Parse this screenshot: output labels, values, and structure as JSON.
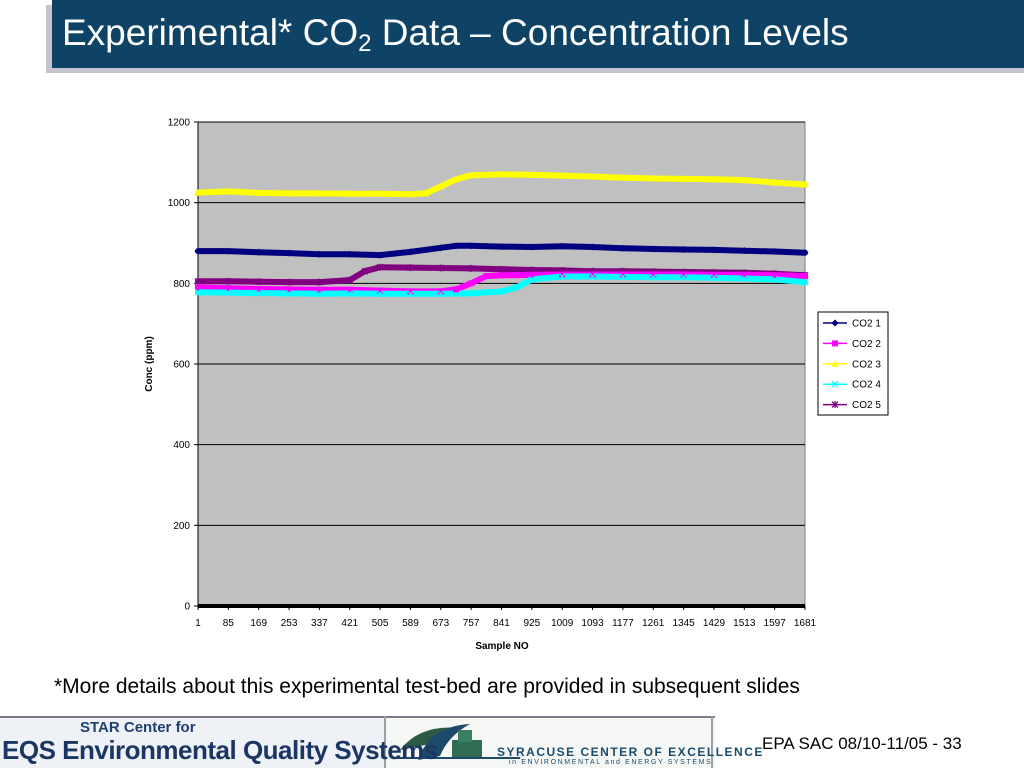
{
  "slide": {
    "title_main": "Experimental* CO",
    "title_sub": "2",
    "title_rest": " Data – Concentration Levels",
    "footnote": "*More details about this experimental test-bed are provided in subsequent slides",
    "slide_ref": "EPA SAC 08/10-11/05 - 33",
    "logos": {
      "star_center": "STAR Center for",
      "eqs_name": "EQS Environmental Quality Systems",
      "syracuse_line1": "SYRACUSE CENTER OF EXCELLENCE",
      "syracuse_line2": "in ENVIRONMENTAL and ENERGY SYSTEMS"
    },
    "colors": {
      "title_bar": "#0e4366",
      "plot_bg": "#c0c0c0"
    }
  },
  "chart_data": {
    "type": "line",
    "xlabel": "Sample NO",
    "ylabel": "Conc (ppm)",
    "ylim": [
      0,
      1200
    ],
    "yticks": [
      0,
      200,
      400,
      600,
      800,
      1000,
      1200
    ],
    "xlim": [
      1,
      1681
    ],
    "xticks": [
      1,
      85,
      169,
      253,
      337,
      421,
      505,
      589,
      673,
      757,
      841,
      925,
      1009,
      1093,
      1177,
      1261,
      1345,
      1429,
      1513,
      1597,
      1681
    ],
    "grid": "horizontal",
    "legend_position": "right",
    "series": [
      {
        "name": "CO2 1",
        "color": "#000080",
        "marker": "diamond",
        "x": [
          1,
          85,
          169,
          253,
          337,
          421,
          505,
          589,
          673,
          715,
          757,
          841,
          925,
          1009,
          1093,
          1177,
          1261,
          1345,
          1429,
          1513,
          1597,
          1681
        ],
        "y": [
          880,
          880,
          877,
          875,
          872,
          872,
          870,
          878,
          888,
          893,
          893,
          891,
          890,
          892,
          890,
          887,
          885,
          884,
          883,
          881,
          879,
          876
        ]
      },
      {
        "name": "CO2 2",
        "color": "#ff00ff",
        "marker": "square",
        "x": [
          1,
          85,
          169,
          253,
          337,
          421,
          505,
          589,
          673,
          715,
          757,
          799,
          841,
          925,
          1009,
          1093,
          1177,
          1261,
          1345,
          1429,
          1513,
          1597,
          1681
        ],
        "y": [
          790,
          788,
          786,
          785,
          784,
          784,
          782,
          780,
          780,
          785,
          800,
          818,
          820,
          821,
          822,
          822,
          822,
          822,
          822,
          821,
          821,
          820,
          818
        ]
      },
      {
        "name": "CO2 3",
        "color": "#ffff00",
        "marker": "triangle",
        "x": [
          1,
          85,
          169,
          253,
          337,
          421,
          505,
          589,
          631,
          673,
          715,
          757,
          841,
          925,
          1009,
          1093,
          1177,
          1261,
          1345,
          1429,
          1513,
          1597,
          1681
        ],
        "y": [
          1025,
          1028,
          1024,
          1023,
          1023,
          1022,
          1022,
          1021,
          1023,
          1040,
          1058,
          1068,
          1070,
          1069,
          1067,
          1065,
          1062,
          1060,
          1059,
          1058,
          1056,
          1050,
          1045
        ]
      },
      {
        "name": "CO2 4",
        "color": "#00ffff",
        "marker": "x",
        "x": [
          1,
          85,
          169,
          253,
          337,
          421,
          505,
          589,
          673,
          757,
          841,
          883,
          925,
          1009,
          1093,
          1177,
          1261,
          1345,
          1429,
          1513,
          1597,
          1681
        ],
        "y": [
          778,
          777,
          776,
          775,
          774,
          775,
          774,
          774,
          774,
          775,
          780,
          790,
          810,
          817,
          817,
          816,
          815,
          815,
          814,
          812,
          810,
          803
        ]
      },
      {
        "name": "CO2 5",
        "color": "#800080",
        "marker": "star",
        "x": [
          1,
          85,
          169,
          253,
          337,
          421,
          463,
          505,
          589,
          673,
          757,
          841,
          925,
          1009,
          1093,
          1177,
          1261,
          1345,
          1429,
          1513,
          1597,
          1681
        ],
        "y": [
          805,
          805,
          804,
          803,
          803,
          808,
          830,
          840,
          839,
          838,
          837,
          835,
          833,
          832,
          830,
          830,
          829,
          828,
          827,
          826,
          824,
          820
        ]
      }
    ]
  }
}
